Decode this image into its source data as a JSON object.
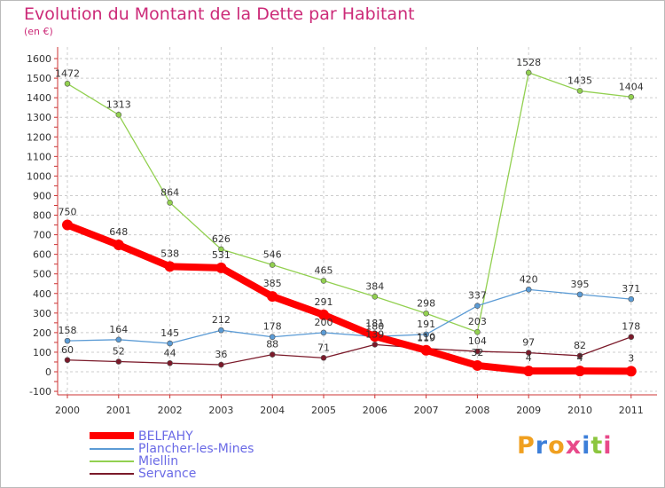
{
  "header": {
    "title": "Evolution du Montant de la Dette par Habitant",
    "unit": "(en €)"
  },
  "logo": {
    "letters": [
      "P",
      "r",
      "o",
      "x",
      "i",
      "t",
      "i"
    ],
    "colors": [
      "#f0a020",
      "#3d7fd9",
      "#f0a020",
      "#e84a8a",
      "#3d7fd9",
      "#8cc63f",
      "#e84a8a"
    ]
  },
  "chart_data": {
    "type": "line",
    "title": "Evolution du Montant de la Dette par Habitant",
    "ylabel": "(en €)",
    "xlabel": "",
    "x": [
      "2000",
      "2001",
      "2002",
      "2003",
      "2004",
      "2005",
      "2006",
      "2007",
      "2008",
      "2009",
      "2010",
      "2011"
    ],
    "yticks": [
      "-100",
      "0",
      "100",
      "200",
      "300",
      "400",
      "500",
      "600",
      "700",
      "800",
      "900",
      "1000",
      "1100",
      "1200",
      "1300",
      "1400",
      "1500",
      "1600"
    ],
    "ylim": [
      -100,
      1600
    ],
    "grid": true,
    "legend_position": "bottom-left",
    "series": [
      {
        "name": "BELFAHY",
        "color": "#ff0000",
        "bold": true,
        "values": [
          750,
          648,
          538,
          531,
          385,
          291,
          181,
          110,
          32,
          4,
          4,
          3
        ],
        "labels": [
          "750",
          "648",
          "538",
          "531",
          "385",
          "291",
          "181",
          "110",
          "32",
          "4",
          "4",
          "3"
        ]
      },
      {
        "name": "Plancher-les-Mines",
        "color": "#5b9bd5",
        "bold": false,
        "values": [
          158,
          164,
          145,
          212,
          178,
          200,
          180,
          191,
          337,
          420,
          395,
          371
        ],
        "labels": [
          "158",
          "164",
          "145",
          "212",
          "178",
          "200",
          "180",
          "191",
          "337",
          "420",
          "395",
          "371"
        ]
      },
      {
        "name": "Miellin",
        "color": "#92d050",
        "bold": false,
        "values": [
          1472,
          1313,
          864,
          626,
          546,
          465,
          384,
          298,
          203,
          1528,
          1435,
          1404
        ],
        "labels": [
          "1472",
          "1313",
          "864",
          "626",
          "546",
          "465",
          "384",
          "298",
          "203",
          "1528",
          "1435",
          "1404"
        ]
      },
      {
        "name": "Servance",
        "color": "#7b1a2a",
        "bold": false,
        "values": [
          60,
          52,
          44,
          36,
          88,
          71,
          139,
          119,
          104,
          97,
          82,
          178
        ],
        "labels": [
          "60",
          "52",
          "44",
          "36",
          "88",
          "71",
          "139",
          "119",
          "104",
          "97",
          "82",
          "178"
        ]
      }
    ]
  }
}
